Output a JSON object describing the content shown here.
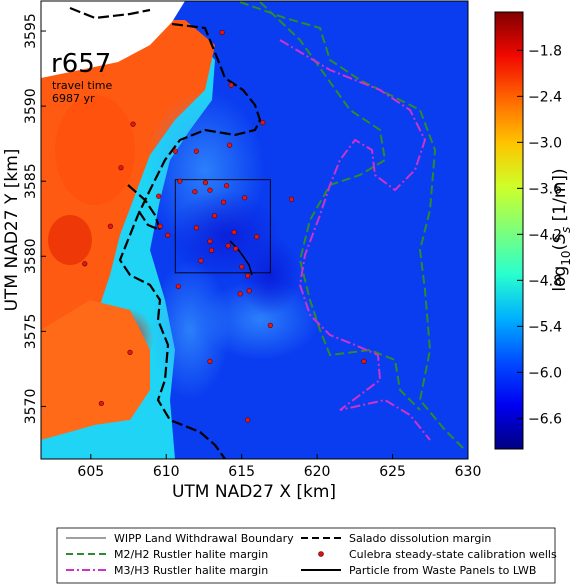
{
  "chart_data": {
    "type": "heatmap",
    "run_label": "r657",
    "annotation": {
      "line1": "travel time",
      "line2": "6987 yr"
    },
    "xlabel": "UTM NAD27 X [km]",
    "ylabel": "UTM NAD27 Y [km]",
    "xlim": [
      601.7,
      630
    ],
    "ylim": [
      3566.5,
      3597
    ],
    "xticks": [
      605,
      610,
      615,
      620,
      625,
      630
    ],
    "yticks": [
      3570,
      3575,
      3580,
      3585,
      3590,
      3595
    ],
    "colorbar": {
      "label": "log10(Ss [1/m])",
      "min": -7.0,
      "max": -1.3,
      "ticks": [
        -1.8,
        -2.4,
        -3.0,
        -3.6,
        -4.2,
        -4.8,
        -5.4,
        -6.0,
        -6.6
      ],
      "tick_labels": [
        "−1.8",
        "−2.4",
        "−3.0",
        "−3.6",
        "−4.2",
        "−4.8",
        "−5.4",
        "−6.0",
        "−6.6"
      ],
      "colors": [
        "#000080",
        "#0000f1",
        "#004dff",
        "#00b1ff",
        "#29ffce",
        "#7dff7a",
        "#ceff29",
        "#ffc400",
        "#ff6800",
        "#f10800",
        "#800000"
      ]
    },
    "regions": [
      {
        "name": "high-Ss western region",
        "value": -2.5
      },
      {
        "name": "intermediate band",
        "value": -5.2
      },
      {
        "name": "background",
        "value": -6.4
      },
      {
        "name": "low-Ss center",
        "value": -6.7
      }
    ],
    "wipp_boundary": {
      "x": [
        610.6,
        616.9
      ],
      "y": [
        3578.9,
        3585.1
      ]
    },
    "wells": [
      [
        613.7,
        3594.9
      ],
      [
        614.3,
        3591.4
      ],
      [
        607.8,
        3588.8
      ],
      [
        616.4,
        3588.9
      ],
      [
        610.6,
        3587.0
      ],
      [
        612.0,
        3587.0
      ],
      [
        614.2,
        3587.4
      ],
      [
        607.0,
        3585.9
      ],
      [
        610.9,
        3585.0
      ],
      [
        612.6,
        3584.9
      ],
      [
        614.0,
        3584.7
      ],
      [
        609.5,
        3584.0
      ],
      [
        611.9,
        3584.3
      ],
      [
        612.9,
        3584.4
      ],
      [
        613.8,
        3583.6
      ],
      [
        615.2,
        3583.9
      ],
      [
        618.3,
        3583.8
      ],
      [
        606.3,
        3582.0
      ],
      [
        609.6,
        3582.0
      ],
      [
        610.1,
        3581.4
      ],
      [
        612.0,
        3581.9
      ],
      [
        613.2,
        3582.7
      ],
      [
        614.5,
        3581.6
      ],
      [
        616.0,
        3581.3
      ],
      [
        612.9,
        3581.0
      ],
      [
        614.6,
        3580.5
      ],
      [
        614.1,
        3580.7
      ],
      [
        613.0,
        3580.4
      ],
      [
        612.3,
        3579.7
      ],
      [
        615.0,
        3579.3
      ],
      [
        615.4,
        3578.7
      ],
      [
        604.6,
        3579.5
      ],
      [
        610.8,
        3578.0
      ],
      [
        614.9,
        3577.5
      ],
      [
        615.5,
        3577.7
      ],
      [
        616.9,
        3575.4
      ],
      [
        607.6,
        3573.6
      ],
      [
        612.9,
        3573.0
      ],
      [
        623.1,
        3573.0
      ],
      [
        605.7,
        3570.2
      ],
      [
        615.4,
        3569.1
      ]
    ],
    "legend": [
      {
        "label": "WIPP Land Withdrawal Boundary",
        "style": "thin-solid",
        "color": "#000000"
      },
      {
        "label": "M2/H2 Rustler halite margin",
        "style": "dashed",
        "color": "#2e8b2e"
      },
      {
        "label": "M3/H3 Rustler halite margin",
        "style": "dash-dot",
        "color": "#cc33cc"
      },
      {
        "label": "Salado dissolution margin",
        "style": "dashed",
        "color": "#000000"
      },
      {
        "label": "Culebra steady-state calibration wells",
        "style": "dot",
        "color": "#dd1111"
      },
      {
        "label": "Particle from Waste Panels to LWB",
        "style": "solid",
        "color": "#000000"
      }
    ]
  }
}
